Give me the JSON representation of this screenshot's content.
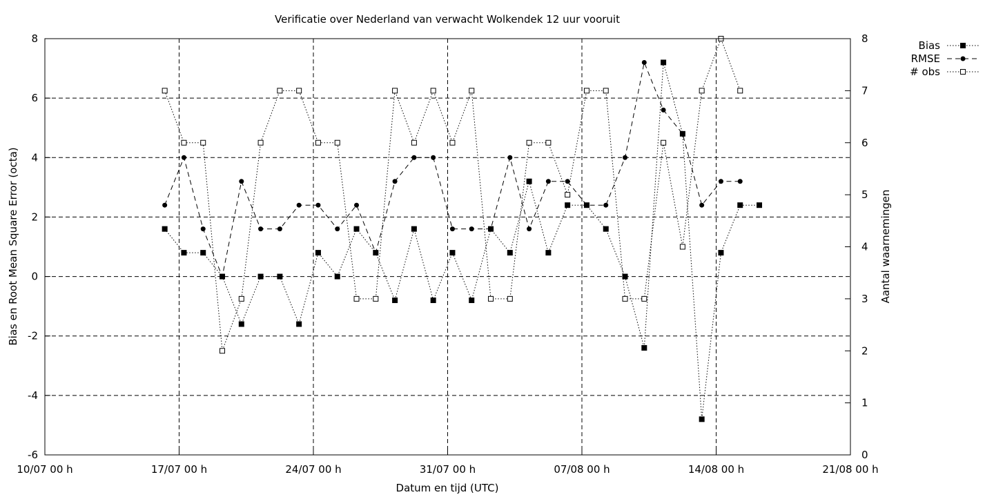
{
  "chart_data": {
    "type": "line",
    "title": "Verificatie over Nederland van verwacht Wolkendek 12 uur vooruit",
    "xlabel": "Datum en tijd (UTC)",
    "ylabel": "Bias en Root Mean Square Error (octa)",
    "y2label": "Aantal waarnemingen",
    "x_ticks": [
      "10/07 00 h",
      "17/07 00 h",
      "24/07 00 h",
      "31/07 00 h",
      "07/08 00 h",
      "14/08 00 h",
      "21/08 00 h"
    ],
    "xlim": [
      0,
      42
    ],
    "ylim": [
      -6,
      8
    ],
    "y2lim": [
      0,
      8
    ],
    "y_ticks": [
      -6,
      -4,
      -2,
      0,
      2,
      4,
      6,
      8
    ],
    "y2_ticks": [
      0,
      1,
      2,
      3,
      4,
      5,
      6,
      7,
      8
    ],
    "grid": true,
    "legend_position": "top-right outside",
    "x": [
      6.25,
      7.25,
      8.25,
      9.25,
      10.25,
      11.25,
      12.25,
      13.25,
      14.25,
      15.25,
      16.25,
      17.25,
      18.25,
      19.25,
      20.25,
      21.25,
      22.25,
      23.25,
      24.25,
      25.25,
      26.25,
      27.25,
      28.25,
      29.25,
      30.25,
      31.25,
      32.25,
      33.25,
      34.25,
      35.25,
      36.25,
      37.25,
      38.25
    ],
    "series": [
      {
        "name": "Bias",
        "axis": "left",
        "style": "dotted",
        "marker": "filled-square",
        "values": [
          1.6,
          0.8,
          0.8,
          0.0,
          -1.6,
          0.0,
          0.0,
          -1.6,
          0.8,
          0.0,
          1.6,
          0.8,
          -0.8,
          1.6,
          -0.8,
          0.8,
          -0.8,
          1.6,
          0.8,
          3.2,
          0.8,
          2.4,
          2.4,
          1.6,
          0.0,
          -2.4,
          7.2,
          4.8,
          -4.8,
          0.8,
          2.4,
          2.4,
          null
        ]
      },
      {
        "name": "RMSE",
        "axis": "left",
        "style": "dashed",
        "marker": "filled-circle",
        "values": [
          2.4,
          4.0,
          1.6,
          0.0,
          3.2,
          1.6,
          1.6,
          2.4,
          2.4,
          1.6,
          2.4,
          0.8,
          3.2,
          4.0,
          4.0,
          1.6,
          1.6,
          1.6,
          4.0,
          1.6,
          3.2,
          3.2,
          2.4,
          2.4,
          4.0,
          7.2,
          5.6,
          4.8,
          2.4,
          3.2,
          3.2,
          null,
          null
        ]
      },
      {
        "name": "# obs",
        "axis": "right",
        "style": "dotted",
        "marker": "open-square",
        "values": [
          7,
          6,
          6,
          2,
          3,
          6,
          7,
          7,
          6,
          6,
          3,
          3,
          7,
          6,
          7,
          6,
          7,
          3,
          3,
          6,
          6,
          5,
          7,
          7,
          3,
          3,
          6,
          4,
          7,
          8,
          7,
          null,
          null
        ]
      }
    ]
  }
}
